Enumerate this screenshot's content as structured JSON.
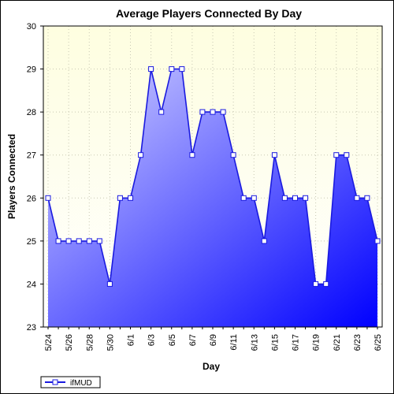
{
  "chart_data": {
    "type": "area",
    "title": "Average Players Connected By Day",
    "xlabel": "Day",
    "ylabel": "Players Connected",
    "ylim": [
      23,
      30
    ],
    "yticks": [
      "23",
      "24",
      "25",
      "26",
      "27",
      "28",
      "29",
      "30"
    ],
    "x": [
      "5/24",
      "5/25",
      "5/26",
      "5/27",
      "5/28",
      "5/29",
      "5/30",
      "5/31",
      "6/1",
      "6/2",
      "6/3",
      "6/4",
      "6/5",
      "6/6",
      "6/7",
      "6/8",
      "6/9",
      "6/10",
      "6/11",
      "6/12",
      "6/13",
      "6/14",
      "6/15",
      "6/16",
      "6/17",
      "6/18",
      "6/19",
      "6/20",
      "6/21",
      "6/22",
      "6/23",
      "6/24",
      "6/25"
    ],
    "xticks": [
      "5/24",
      "5/26",
      "5/28",
      "5/30",
      "6/1",
      "6/3",
      "6/5",
      "6/7",
      "6/9",
      "6/11",
      "6/13",
      "6/15",
      "6/17",
      "6/19",
      "6/21",
      "6/23",
      "6/25"
    ],
    "series": [
      {
        "name": "ifMUD",
        "values": [
          26,
          25,
          25,
          25,
          25,
          25,
          24,
          26,
          26,
          27,
          29,
          28,
          29,
          29,
          27,
          28,
          28,
          28,
          27,
          26,
          26,
          25,
          27,
          26,
          26,
          26,
          24,
          24,
          27,
          27,
          26,
          26,
          25
        ]
      }
    ],
    "grid": true,
    "legend": "bottom-left",
    "colors": {
      "plot_bg_top": "#fefee0",
      "plot_bg_bottom": "#ffffff",
      "line": "#1a1adf",
      "fill_light": "#d4d4ff",
      "fill_dark": "#0000ff",
      "grid": "#c8c8b4",
      "marker_fill": "#ffffff"
    }
  }
}
